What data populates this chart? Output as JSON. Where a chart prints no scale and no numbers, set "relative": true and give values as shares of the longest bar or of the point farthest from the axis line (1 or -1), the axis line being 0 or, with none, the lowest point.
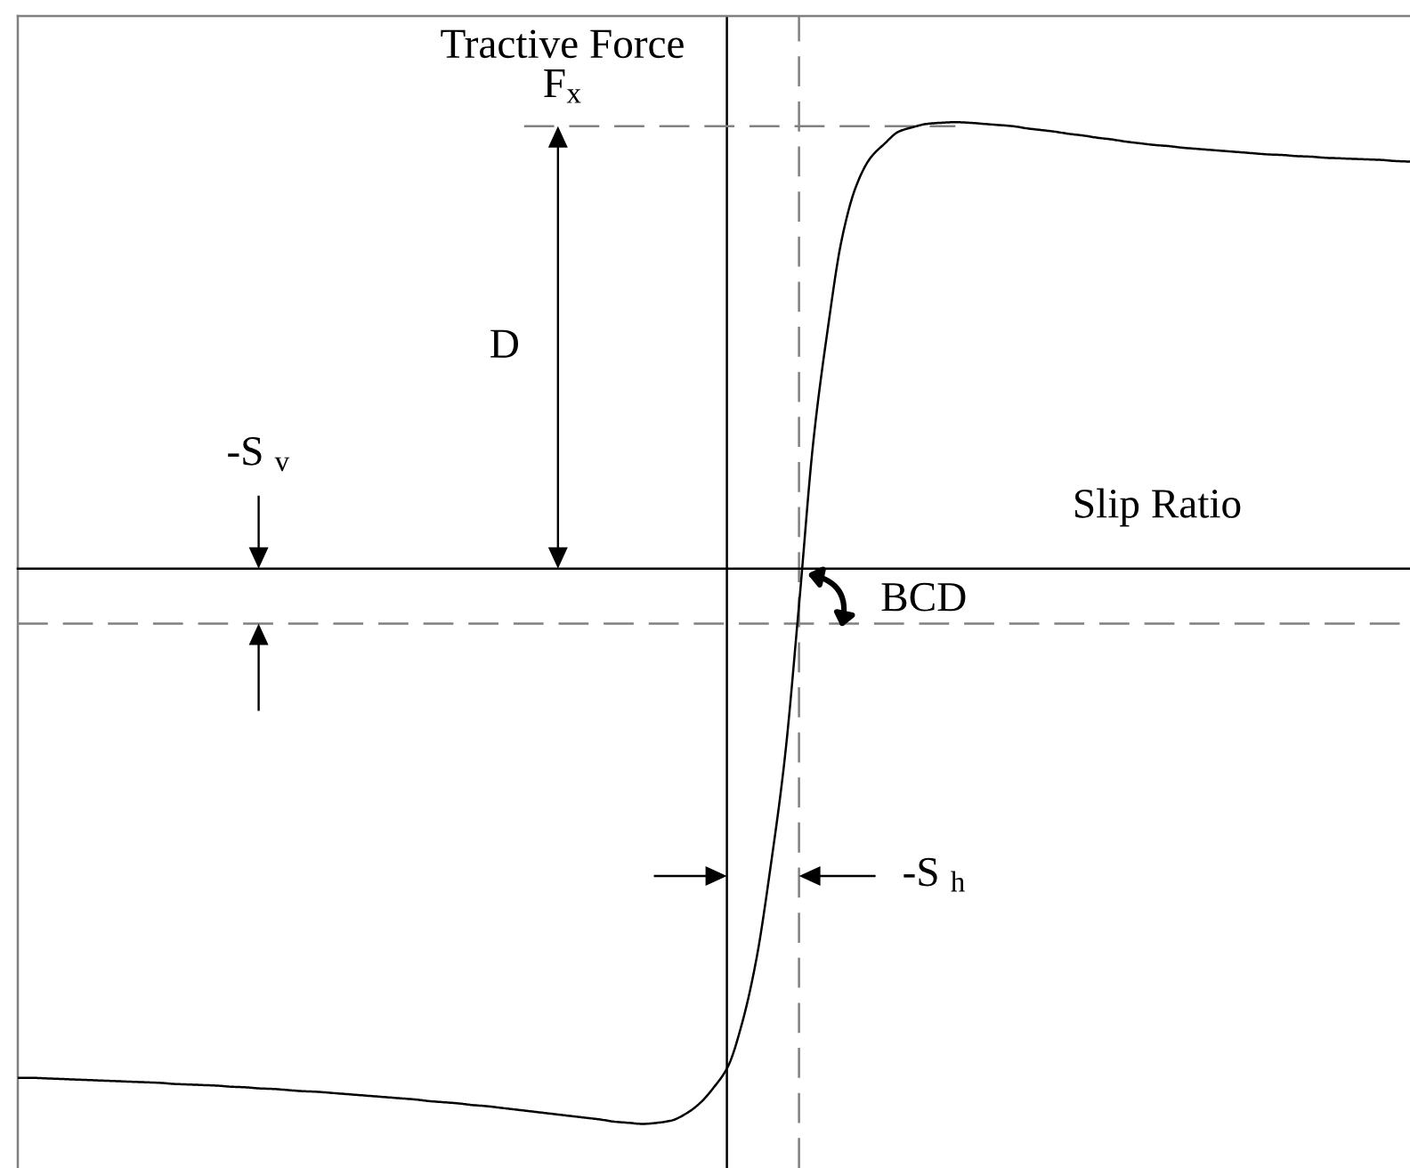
{
  "chart_data": {
    "type": "line",
    "relative": true,
    "xlabel": "Slip Ratio",
    "ylabel": "Tractive Force\nF$_{x}$",
    "categories": [
      null,
      null,
      null,
      null,
      null,
      null,
      null,
      null,
      null,
      null,
      null,
      null,
      null,
      null,
      null,
      null,
      null,
      null,
      null,
      null,
      null,
      null,
      null,
      null,
      null,
      null,
      null,
      null,
      null,
      null,
      null,
      null,
      null,
      null,
      null,
      null,
      null,
      null,
      null,
      null,
      null,
      null,
      null,
      null,
      null,
      null,
      null,
      null,
      null,
      null,
      null,
      null,
      null,
      null,
      null,
      null,
      null,
      null,
      null,
      null,
      null,
      null,
      null,
      null,
      null,
      null,
      null,
      null,
      null,
      null,
      null,
      null,
      null,
      null,
      null,
      null,
      null,
      null,
      null,
      null,
      null,
      null,
      null,
      null,
      null,
      null,
      null,
      null,
      null,
      null,
      null,
      null,
      null,
      null,
      null,
      null,
      null,
      null,
      null
    ],
    "series": [
      {
        "color": "#000000",
        "values": [
          -0.917,
          -0.917,
          -0.918,
          -0.919,
          -0.92,
          -0.921,
          -0.922,
          -0.923,
          -0.924,
          -0.925,
          -0.926,
          -0.928,
          -0.929,
          -0.93,
          -0.931,
          -0.933,
          -0.934,
          -0.936,
          -0.937,
          -0.939,
          -0.941,
          -0.942,
          -0.944,
          -0.946,
          -0.948,
          -0.95,
          -0.952,
          -0.954,
          -0.956,
          -0.959,
          -0.961,
          -0.963,
          -0.966,
          -0.968,
          -0.971,
          -0.974,
          -0.977,
          -0.98,
          -0.983,
          -0.986,
          -0.989,
          -0.992,
          -0.996,
          -0.998,
          -1.0,
          -0.998,
          -0.994,
          -0.982,
          -0.963,
          -0.934,
          -0.896,
          -0.817,
          -0.702,
          -0.535,
          -0.339,
          -0.063,
          0.229,
          0.429,
          0.593,
          0.688,
          0.739,
          0.765,
          0.787,
          0.795,
          0.801,
          0.803,
          0.804,
          0.803,
          0.801,
          0.799,
          0.797,
          0.793,
          0.79,
          0.787,
          0.783,
          0.78,
          0.776,
          0.773,
          0.769,
          0.766,
          0.763,
          0.761,
          0.758,
          0.756,
          0.754,
          0.752,
          0.75,
          0.748,
          0.746,
          0.745,
          0.743,
          0.742,
          0.74,
          0.739,
          0.738,
          0.737,
          0.736,
          0.734,
          0.733
        ]
      }
    ],
    "ref_lines": [
      {
        "axis": "y",
        "value": 0.797,
        "color": "#808080",
        "line_style": "dashed"
      },
      {
        "axis": "y",
        "value": -0.099,
        "color": "#808080",
        "line_style": "dashed"
      }
    ],
    "annotations": [
      "D",
      "-S $_{v}$",
      "BCD",
      "-S $_{h}$"
    ]
  }
}
